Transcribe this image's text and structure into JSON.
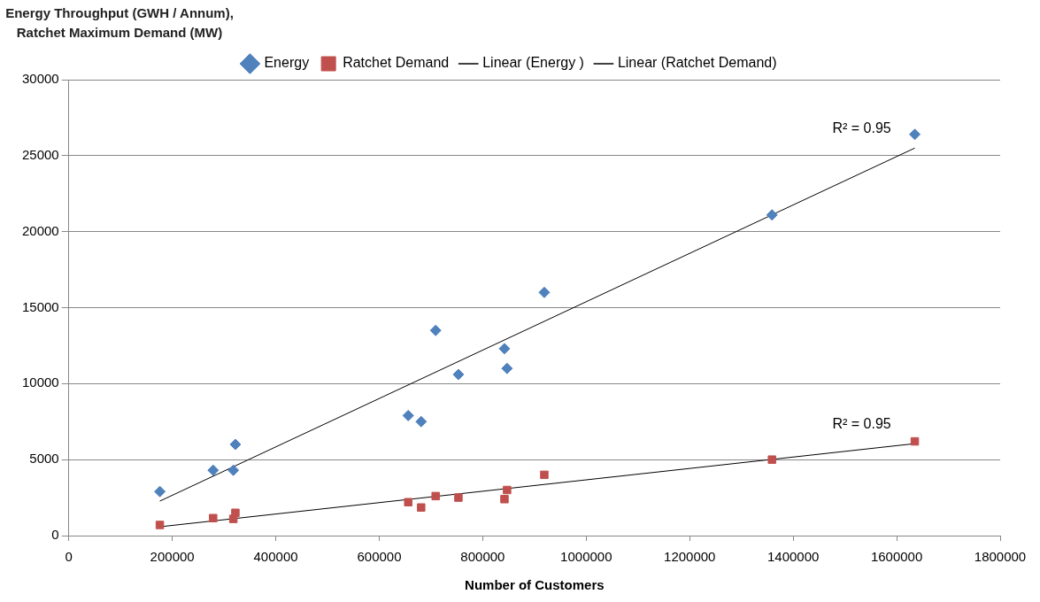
{
  "chart_data": {
    "type": "scatter",
    "xlabel": "Number of Customers",
    "ylabel": "Energy Throughput (GWH / Annum), Ratchet Maximum Demand (MW)",
    "xlim": [
      0,
      1800000
    ],
    "xticks": [
      0,
      200000,
      400000,
      600000,
      800000,
      1000000,
      1200000,
      1400000,
      1600000,
      1800000
    ],
    "ylim": [
      0,
      30000
    ],
    "yticks": [
      0,
      5000,
      10000,
      15000,
      20000,
      25000,
      30000
    ],
    "grid": "y",
    "legend": "top",
    "series": [
      {
        "name": "Energy",
        "type": "scatter",
        "marker": "diamond",
        "color": "#4f81bd",
        "x": [
          176000,
          279000,
          318000,
          322000,
          656000,
          681000,
          709000,
          753000,
          842000,
          847000,
          919000,
          1359000,
          1635000
        ],
        "values": [
          2900,
          4300,
          4300,
          6000,
          7900,
          7500,
          13500,
          10600,
          12300,
          11000,
          16000,
          21100,
          26400
        ]
      },
      {
        "name": "Ratchet Demand",
        "type": "scatter",
        "marker": "square",
        "color": "#c0504d",
        "x": [
          176000,
          279000,
          318000,
          322000,
          656000,
          681000,
          709000,
          753000,
          842000,
          847000,
          919000,
          1359000,
          1635000
        ],
        "values": [
          700,
          1150,
          1100,
          1500,
          2200,
          1850,
          2600,
          2500,
          2400,
          3000,
          4000,
          5000,
          6200
        ]
      },
      {
        "name": "Linear (Energy )",
        "type": "line",
        "marker": "none",
        "color": "#000000",
        "x": [
          176000,
          1635000
        ],
        "values": [
          2270,
          25500
        ]
      },
      {
        "name": "Linear (Ratchet Demand)",
        "type": "line",
        "marker": "none",
        "color": "#000000",
        "x": [
          176000,
          1635000
        ],
        "values": [
          580,
          6050
        ]
      }
    ],
    "annotations": [
      "R² = 0.95",
      "R² = 0.95"
    ]
  }
}
